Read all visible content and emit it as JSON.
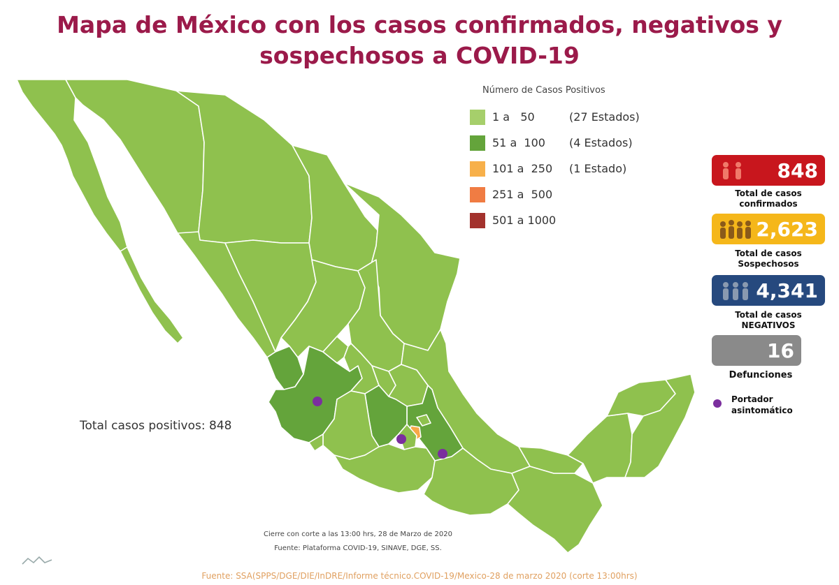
{
  "title": {
    "line1": "Mapa de México con los casos confirmados, negativos y",
    "line2": "sospechosos a COVID-19"
  },
  "legend": {
    "title": "Número de Casos Positivos",
    "items": [
      {
        "range": "1 a   50",
        "count": "(27 Estados)",
        "color": "#a6cf6b"
      },
      {
        "range": "51 a  100",
        "count": "(4 Estados)",
        "color": "#64a43b"
      },
      {
        "range": "101 a  250",
        "count": "(1 Estado)",
        "color": "#f7b04a"
      },
      {
        "range": "251 a  500",
        "count": "",
        "color": "#f07c43"
      },
      {
        "range": "501 a 1000",
        "count": "",
        "color": "#a3322d"
      }
    ]
  },
  "map": {
    "total_positive": "Total casos positivos: 848",
    "footnote_cutoff": "Cierre con corte a las 13:00 hrs, 28 de Marzo de 2020",
    "footnote_source": "Fuente: Plataforma COVID-19, SINAVE, DGE, SS.",
    "colors": {
      "base": "#8fc14e",
      "mid": "#64a43b",
      "orange": "#f7a847",
      "carrier": "#7b2f9e"
    }
  },
  "stats": {
    "confirmed": {
      "value": "848",
      "label_line1": "Total de casos",
      "label_line2": "confirmados",
      "color": "#c8161d",
      "icon": "people-icon"
    },
    "suspected": {
      "value": "2,623",
      "label_line1": "Total de casos",
      "label_line2": "Sospechosos",
      "color": "#f5b71a",
      "icon": "crowd-icon"
    },
    "negative": {
      "value": "4,341",
      "label_line1": "Total de casos",
      "label_line2": "NEGATIVOS",
      "color": "#26497e",
      "icon": "people-icon"
    },
    "deaths": {
      "value": "16",
      "label_line1": "Defunciones",
      "color": "#8a8a8a"
    }
  },
  "carrier_legend": {
    "line1": "Portador",
    "line2": "asintomático"
  },
  "source": "Fuente: SSA(SPPS/DGE/DIE/InDRE/Informe técnico.COVID-19/Mexico-28 de marzo 2020 (corte 13:00hrs)"
}
